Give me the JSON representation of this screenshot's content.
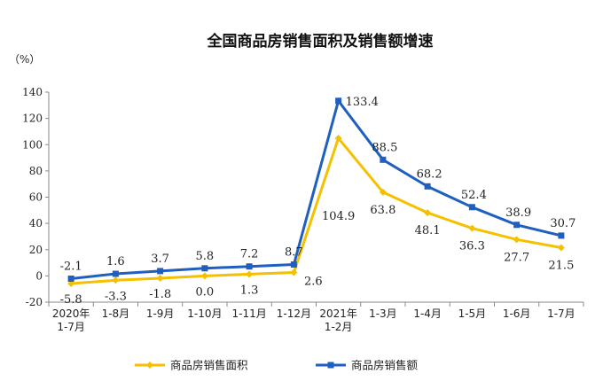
{
  "chart_data": {
    "type": "line",
    "title": "全国商品房销售面积及销售额增速",
    "ylabel": "（%）",
    "xlabel": "",
    "ylim": [
      -20,
      140
    ],
    "yticks": [
      -20,
      0,
      20,
      40,
      60,
      80,
      100,
      120,
      140
    ],
    "categories": [
      [
        "2020年",
        "1-7月"
      ],
      [
        "1-8月"
      ],
      [
        "1-9月"
      ],
      [
        "1-10月"
      ],
      [
        "1-11月"
      ],
      [
        "1-12月"
      ],
      [
        "2021年",
        "1-2月"
      ],
      [
        "1-3月"
      ],
      [
        "1-4月"
      ],
      [
        "1-5月"
      ],
      [
        "1-6月"
      ],
      [
        "1-7月"
      ]
    ],
    "series": [
      {
        "name": "商品房销售面积",
        "color": "#f5c000",
        "marker": "diamond",
        "values": [
          -5.8,
          -3.3,
          -1.8,
          0.0,
          1.3,
          2.6,
          104.9,
          63.8,
          48.1,
          36.3,
          27.7,
          21.5
        ],
        "labels": [
          "-5.8",
          "-3.3",
          "-1.8",
          "0.0",
          "1.3",
          "2.6",
          "104.9",
          "63.8",
          "48.1",
          "36.3",
          "27.7",
          "21.5"
        ]
      },
      {
        "name": "商品房销售额",
        "color": "#1f5fbf",
        "marker": "square",
        "values": [
          -2.1,
          1.6,
          3.7,
          5.8,
          7.2,
          8.7,
          133.4,
          88.5,
          68.2,
          52.4,
          38.9,
          30.7
        ],
        "labels": [
          "-2.1",
          "1.6",
          "3.7",
          "5.8",
          "7.2",
          "8.7",
          "133.4",
          "88.5",
          "68.2",
          "52.4",
          "38.9",
          "30.7"
        ]
      }
    ],
    "grid": false,
    "legend": "bottom"
  }
}
